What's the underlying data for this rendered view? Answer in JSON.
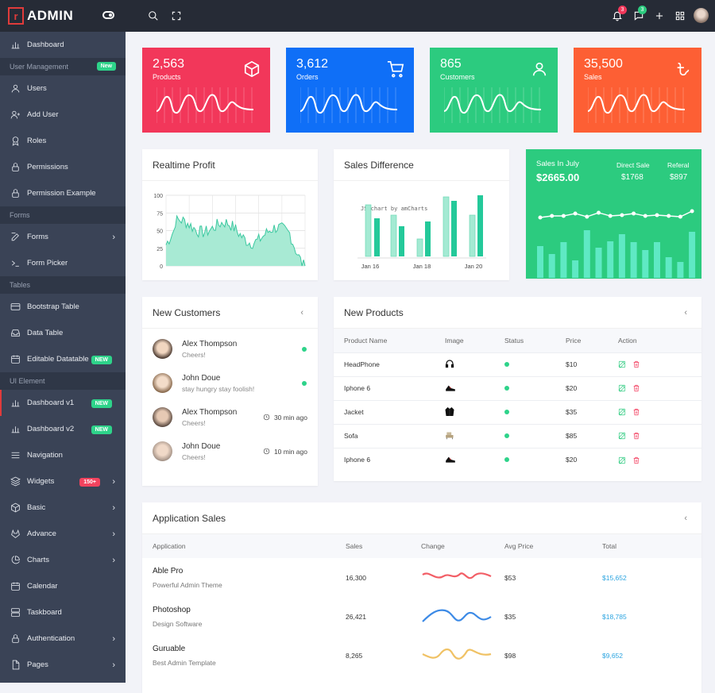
{
  "brand": {
    "logo_mark": "r",
    "name": "ADMIN"
  },
  "sidebar": {
    "items": [
      {
        "type": "item",
        "label": "Dashboard",
        "icon": "bar-chart-icon"
      },
      {
        "type": "section",
        "label": "User Management",
        "badge": "New",
        "badge_color": "green"
      },
      {
        "type": "item",
        "label": "Users",
        "icon": "user-icon"
      },
      {
        "type": "item",
        "label": "Add User",
        "icon": "user-plus-icon"
      },
      {
        "type": "item",
        "label": "Roles",
        "icon": "award-icon"
      },
      {
        "type": "item",
        "label": "Permissions",
        "icon": "lock-icon"
      },
      {
        "type": "item",
        "label": "Permission Example",
        "icon": "lock-icon"
      },
      {
        "type": "section",
        "label": "Forms"
      },
      {
        "type": "item",
        "label": "Forms",
        "icon": "edit-icon",
        "chevron": true
      },
      {
        "type": "item",
        "label": "Form Picker",
        "icon": "terminal-icon"
      },
      {
        "type": "section",
        "label": "Tables"
      },
      {
        "type": "item",
        "label": "Bootstrap Table",
        "icon": "credit-card-icon"
      },
      {
        "type": "item",
        "label": "Data Table",
        "icon": "inbox-icon"
      },
      {
        "type": "item",
        "label": "Editable Datatable",
        "icon": "calendar-icon",
        "badge": "NEW",
        "badge_color": "green"
      },
      {
        "type": "section",
        "label": "UI Element"
      },
      {
        "type": "item",
        "label": "Dashboard v1",
        "icon": "bar-chart-icon",
        "badge": "NEW",
        "badge_color": "green",
        "active": true
      },
      {
        "type": "item",
        "label": "Dashboard v2",
        "icon": "bar-chart-icon",
        "badge": "NEW",
        "badge_color": "green"
      },
      {
        "type": "item",
        "label": "Navigation",
        "icon": "menu-icon"
      },
      {
        "type": "item",
        "label": "Widgets",
        "icon": "layers-icon",
        "badge": "150+",
        "badge_color": "red",
        "chevron": true
      },
      {
        "type": "item",
        "label": "Basic",
        "icon": "box-icon",
        "chevron": true
      },
      {
        "type": "item",
        "label": "Advance",
        "icon": "gitlab-icon",
        "chevron": true
      },
      {
        "type": "item",
        "label": "Charts",
        "icon": "pie-chart-icon",
        "chevron": true
      },
      {
        "type": "item",
        "label": "Calendar",
        "icon": "calendar-icon"
      },
      {
        "type": "item",
        "label": "Taskboard",
        "icon": "server-icon"
      },
      {
        "type": "item",
        "label": "Authentication",
        "icon": "lock-icon",
        "chevron": true
      },
      {
        "type": "item",
        "label": "Pages",
        "icon": "file-icon",
        "chevron": true
      }
    ]
  },
  "topbar": {
    "notifications_count": "3",
    "messages_count": "3"
  },
  "stats": [
    {
      "value": "2,563",
      "label": "Products",
      "color": "#f2375a",
      "icon": "box-icon"
    },
    {
      "value": "3,612",
      "label": "Orders",
      "color": "#0f6ff7",
      "icon": "cart-icon"
    },
    {
      "value": "865",
      "label": "Customers",
      "color": "#2ccb7f",
      "icon": "user-icon"
    },
    {
      "value": "35,500",
      "label": "Sales",
      "color": "#fd5f34",
      "icon": "taka-icon"
    }
  ],
  "realtime_profit": {
    "title": "Realtime Profit",
    "y_ticks": [
      "100",
      "75",
      "50",
      "25",
      "0"
    ]
  },
  "sales_difference": {
    "title": "Sales Difference",
    "credit": "JS chart by amCharts",
    "x_labels": [
      "Jan 16",
      "Jan 18",
      "Jan 20"
    ]
  },
  "sales_july": {
    "title": "Sales In July",
    "amount": "$2665.00",
    "direct_label": "Direct Sale",
    "direct_value": "$1768",
    "referal_label": "Referal",
    "referal_value": "$897"
  },
  "new_customers": {
    "title": "New Customers",
    "items": [
      {
        "name": "Alex Thompson",
        "message": "Cheers!",
        "status": "dot"
      },
      {
        "name": "John Doue",
        "message": "stay hungry stay foolish!",
        "status": "dot"
      },
      {
        "name": "Alex Thompson",
        "message": "Cheers!",
        "status": "time",
        "time": "30 min ago"
      },
      {
        "name": "John Doue",
        "message": "Cheers!",
        "status": "time",
        "time": "10 min ago"
      }
    ]
  },
  "new_products": {
    "title": "New Products",
    "columns": [
      "Product Name",
      "Image",
      "Status",
      "Price",
      "Action"
    ],
    "rows": [
      {
        "name": "HeadPhone",
        "price": "$10",
        "image": "headphone-icon"
      },
      {
        "name": "Iphone 6",
        "price": "$20",
        "image": "shoe-icon"
      },
      {
        "name": "Jacket",
        "price": "$35",
        "image": "jacket-icon"
      },
      {
        "name": "Sofa",
        "price": "$85",
        "image": "sofa-icon"
      },
      {
        "name": "Iphone 6",
        "price": "$20",
        "image": "shoe-icon"
      }
    ]
  },
  "application_sales": {
    "title": "Application Sales",
    "columns": [
      "Application",
      "Sales",
      "Change",
      "Avg Price",
      "Total"
    ],
    "rows": [
      {
        "name": "Able Pro",
        "desc": "Powerful Admin Theme",
        "sales": "16,300",
        "avg": "$53",
        "total": "$15,652",
        "color": "#f25e66"
      },
      {
        "name": "Photoshop",
        "desc": "Design Software",
        "sales": "26,421",
        "avg": "$35",
        "total": "$18,785",
        "color": "#3c8ae6"
      },
      {
        "name": "Guruable",
        "desc": "Best Admin Template",
        "sales": "8,265",
        "avg": "$98",
        "total": "$9,652",
        "color": "#f0c265"
      }
    ]
  }
}
